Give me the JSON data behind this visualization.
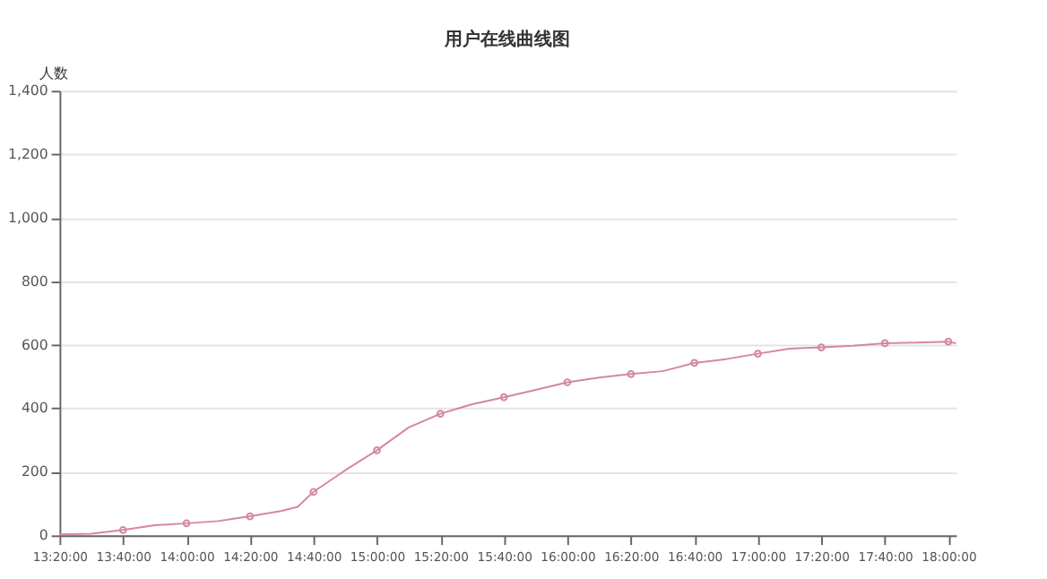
{
  "chart_data": {
    "type": "line",
    "title": "用户在线曲线图",
    "ylabel": "人数",
    "xlim": [
      13.3333,
      18.04
    ],
    "ylim": [
      0,
      1400
    ],
    "yticks": [
      {
        "value": 0,
        "label": "0"
      },
      {
        "value": 200,
        "label": "200"
      },
      {
        "value": 400,
        "label": "400"
      },
      {
        "value": 600,
        "label": "600"
      },
      {
        "value": 800,
        "label": "800"
      },
      {
        "value": 1000,
        "label": "1,000"
      },
      {
        "value": 1200,
        "label": "1,200"
      },
      {
        "value": 1400,
        "label": "1,400"
      }
    ],
    "xticks": [
      {
        "value": 13.3333,
        "label": "13:20:00"
      },
      {
        "value": 13.6667,
        "label": "13:40:00"
      },
      {
        "value": 14,
        "label": "14:00:00"
      },
      {
        "value": 14.3333,
        "label": "14:20:00"
      },
      {
        "value": 14.6667,
        "label": "14:40:00"
      },
      {
        "value": 15,
        "label": "15:00:00"
      },
      {
        "value": 15.3333,
        "label": "15:20:00"
      },
      {
        "value": 15.6667,
        "label": "15:40:00"
      },
      {
        "value": 16,
        "label": "16:00:00"
      },
      {
        "value": 16.3333,
        "label": "16:20:00"
      },
      {
        "value": 16.6667,
        "label": "16:40:00"
      },
      {
        "value": 17,
        "label": "17:00:00"
      },
      {
        "value": 17.3333,
        "label": "17:20:00"
      },
      {
        "value": 17.6667,
        "label": "17:40:00"
      },
      {
        "value": 18,
        "label": "18:00:00"
      }
    ],
    "grid": "y",
    "legend": false,
    "line_style": "solid",
    "series": [
      {
        "type": "line",
        "color": "#d4889a",
        "marker": "none",
        "x": [
          13.3333,
          13.5,
          13.6667,
          13.8333,
          14,
          14.1667,
          14.3333,
          14.5,
          14.5833,
          14.6667,
          14.8333,
          15,
          15.1667,
          15.3333,
          15.5,
          15.6667,
          15.8333,
          16,
          16.1667,
          16.3333,
          16.5,
          16.6667,
          16.8333,
          17,
          17.1667,
          17.3333,
          17.5,
          17.6667,
          17.8333,
          18,
          18.04
        ],
        "values": [
          3,
          5,
          17,
          32,
          38,
          45,
          60,
          77,
          90,
          137,
          205,
          268,
          340,
          383,
          413,
          435,
          458,
          482,
          497,
          508,
          517,
          543,
          555,
          572,
          588,
          592,
          597,
          605,
          607,
          610,
          605
        ]
      },
      {
        "type": "scatter",
        "color": "#d4889a",
        "marker": "circle",
        "x": [
          13.6667,
          14,
          14.3333,
          14.6667,
          15,
          15.3333,
          15.6667,
          16,
          16.3333,
          16.6667,
          17,
          17.3333,
          17.6667,
          18
        ],
        "values": [
          17,
          38,
          60,
          137,
          268,
          383,
          435,
          482,
          508,
          543,
          572,
          592,
          605,
          610
        ]
      }
    ]
  }
}
